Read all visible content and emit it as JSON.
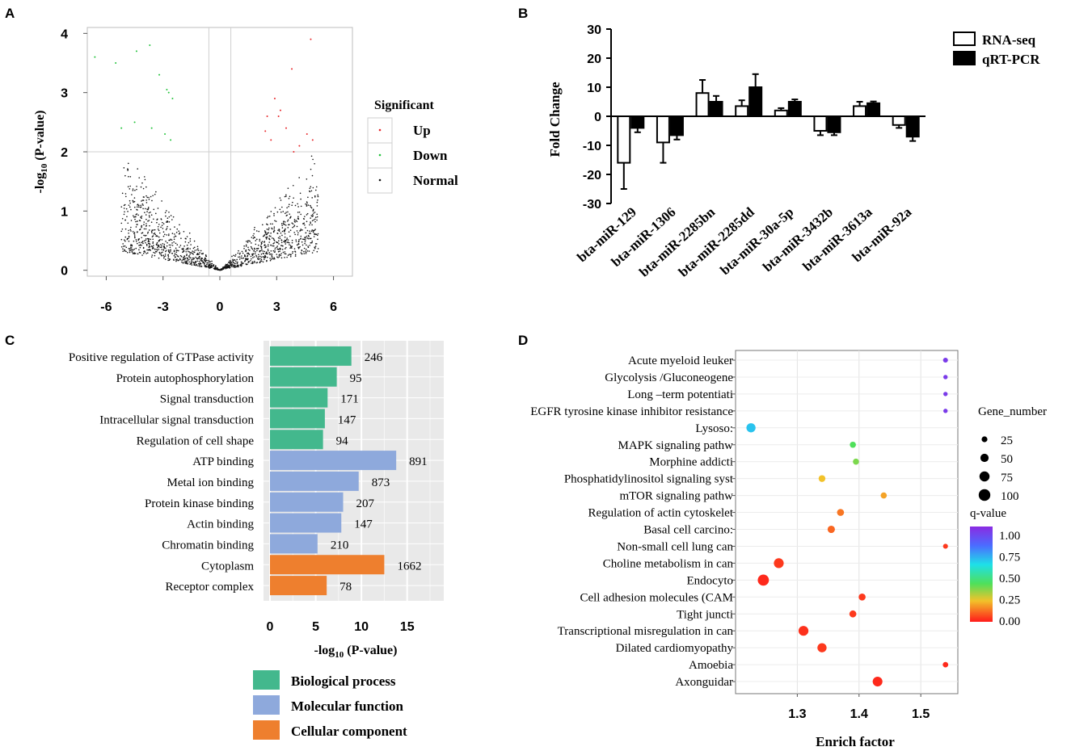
{
  "chart_data": [
    {
      "panel": "A",
      "type": "scatter",
      "xlabel": "",
      "ylabel": "-log10 (P-value)",
      "ylabel_main": "-log",
      "ylabel_sub": "10",
      "ylabel_rest": " (P-value)",
      "xlim": [
        -7,
        7
      ],
      "ylim": [
        -0.1,
        4.1
      ],
      "xticks": [
        -6,
        -3,
        0,
        3,
        6
      ],
      "yticks": [
        0,
        1,
        2,
        3,
        4
      ],
      "threshold_lines": {
        "x": [
          -0.58,
          0.58
        ],
        "y": 2
      },
      "legend_title": "Significant",
      "legend": [
        {
          "name": "Up",
          "color": "#e8262a"
        },
        {
          "name": "Down",
          "color": "#22c33b"
        },
        {
          "name": "Normal",
          "color": "#111111"
        }
      ],
      "note": "Volcano plot of differentially expressed miRNAs; points clustered along a V shape, significant ones above y=2."
    },
    {
      "panel": "B",
      "type": "bar",
      "categories": [
        "bta-miR-129",
        "bta-miR-1306",
        "bta-miR-2285bn",
        "bta-miR-2285dd",
        "bta-miR-30a-5p",
        "bta-miR-3432b",
        "bta-miR-3613a",
        "bta-miR-92a"
      ],
      "series": [
        {
          "name": "RNA-seq",
          "values": [
            -16,
            -9,
            8,
            3.5,
            2,
            -5,
            3.5,
            -3
          ],
          "errors": [
            9,
            7,
            4.5,
            2,
            0.8,
            1.5,
            1.5,
            1
          ]
        },
        {
          "name": "qRT-PCR",
          "values": [
            -4,
            -6.5,
            5,
            10,
            5,
            -5.5,
            4.5,
            -7
          ],
          "errors": [
            1.5,
            1.5,
            2,
            4.5,
            0.8,
            1,
            0.6,
            1.5
          ]
        }
      ],
      "ylabel": "Fold Change",
      "ylim": [
        -30,
        30
      ],
      "yticks": [
        -30,
        -20,
        -10,
        0,
        10,
        20,
        30
      ]
    },
    {
      "panel": "C",
      "type": "bar",
      "orientation": "horizontal",
      "categories": [
        "Positive regulation of GTPase activity",
        "Protein autophosphorylation",
        "Signal transduction",
        "Intracellular signal transduction",
        "Regulation of cell shape",
        "ATP binding",
        "Metal ion binding",
        "Protein kinase binding",
        "Actin binding",
        "Chromatin binding",
        "Cytoplasm",
        "Receptor complex"
      ],
      "values": [
        8.9,
        7.3,
        6.3,
        6.0,
        5.8,
        13.8,
        9.7,
        8.0,
        7.8,
        5.2,
        12.5,
        6.2
      ],
      "labels": [
        "246",
        "95",
        "171",
        "147",
        "94",
        "891",
        "873",
        "207",
        "147",
        "210",
        "1662",
        "78"
      ],
      "groups": [
        "Biological process",
        "Biological process",
        "Biological process",
        "Biological process",
        "Biological process",
        "Molecular function",
        "Molecular function",
        "Molecular function",
        "Molecular function",
        "Molecular function",
        "Cellular component",
        "Cellular component"
      ],
      "xlabel": "-log10 (P-value)",
      "xlabel_main": "-log",
      "xlabel_sub": "10",
      "xlabel_rest": " (P-value)",
      "xlim": [
        0,
        19
      ],
      "xticks": [
        0,
        5,
        10,
        15
      ],
      "legend": [
        {
          "name": "Biological process",
          "color": "#43b88d"
        },
        {
          "name": "Molecular function",
          "color": "#8ea9dc"
        },
        {
          "name": "Cellular component",
          "color": "#ee7f2e"
        }
      ]
    },
    {
      "panel": "D",
      "type": "scatter",
      "categories": [
        "Acute myeloid leuker",
        "Glycolysis /Gluconeogene",
        "Long –term potentiati",
        "EGFR tyrosine kinase inhibitor resistance",
        "Lysoso:",
        "MAPK signaling pathw",
        "Morphine addicti",
        "Phosphatidylinositol signaling syst",
        "mTOR signaling pathw",
        "Regulation of actin cytoskelet",
        "Basal cell carcino:",
        "Non-small cell lung can",
        "Choline metabolism in can",
        "Endocyto",
        "Cell adhesion molecules (CAM",
        "Tight juncti",
        "Transcriptional misregulation in can",
        "Dilated cardiomyopathy",
        "Amoebia",
        "Axonguidar"
      ],
      "x": [
        1.54,
        1.54,
        1.54,
        1.54,
        1.225,
        1.39,
        1.395,
        1.34,
        1.44,
        1.37,
        1.355,
        1.54,
        1.27,
        1.245,
        1.405,
        1.39,
        1.31,
        1.34,
        1.54,
        1.43
      ],
      "gene_number": [
        18,
        14,
        14,
        14,
        62,
        28,
        28,
        34,
        28,
        36,
        40,
        18,
        72,
        92,
        36,
        36,
        72,
        62,
        22,
        70
      ],
      "q_value": [
        0.95,
        0.95,
        0.95,
        0.95,
        0.65,
        0.4,
        0.35,
        0.22,
        0.18,
        0.12,
        0.1,
        0.04,
        0.04,
        0.02,
        0.04,
        0.04,
        0.03,
        0.04,
        0.02,
        0.02
      ],
      "xlabel": "Enrich factor",
      "xlim": [
        1.2,
        1.56
      ],
      "xticks": [
        "1.3",
        "1.4",
        "1.5"
      ],
      "size_legend_title": "Gene_number",
      "size_legend": [
        "25",
        "50",
        "75",
        "100"
      ],
      "color_legend_title": "q-value",
      "color_legend": [
        "1.00",
        "0.75",
        "0.50",
        "0.25",
        "0.00"
      ]
    }
  ],
  "panel_labels": [
    "A",
    "B",
    "C",
    "D"
  ]
}
